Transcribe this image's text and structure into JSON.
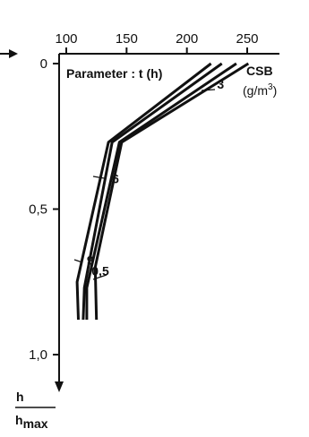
{
  "chart_data": {
    "type": "line",
    "title": "",
    "annotation": "Parameter : t (h)",
    "xlabel_line1": "CSB",
    "xlabel_line2": "(g/m",
    "xlabel_sup": "3",
    "xlabel_close": ")",
    "ylabel_top": "h",
    "ylabel_bottom_main": "h",
    "ylabel_bottom_sub": "max",
    "x_axis_position": "top",
    "y_axis_direction": "downward",
    "xlim": [
      90,
      265
    ],
    "ylim": [
      0,
      1.1
    ],
    "x_ticks": [
      {
        "value": 100,
        "label": "100"
      },
      {
        "value": 150,
        "label": "150"
      },
      {
        "value": 200,
        "label": "200"
      },
      {
        "value": 250,
        "label": "250"
      }
    ],
    "y_ticks": [
      {
        "value": 0,
        "label": "0"
      },
      {
        "value": 0.5,
        "label": "0,5"
      },
      {
        "value": 1.0,
        "label": "1,0"
      }
    ],
    "grid": false,
    "legend": "none",
    "series": [
      {
        "name": "3",
        "points": [
          [
            229,
            0
          ],
          [
            138,
            0.27
          ],
          [
            115,
            0.77
          ],
          [
            114,
            0.88
          ]
        ],
        "label_at": [
          225,
          0.07
        ]
      },
      {
        "name": "6",
        "points": [
          [
            241,
            0
          ],
          [
            144,
            0.27
          ],
          [
            117,
            0.77
          ],
          [
            117,
            0.88
          ]
        ],
        "label_at": [
          138,
          0.395
        ]
      },
      {
        "name": "9",
        "points": [
          [
            220,
            0
          ],
          [
            135,
            0.27
          ],
          [
            109,
            0.75
          ],
          [
            110,
            0.88
          ]
        ],
        "label_at": [
          117,
          0.675
        ]
      },
      {
        "name": "0,5",
        "points": [
          [
            251,
            0
          ],
          [
            146,
            0.27
          ],
          [
            124,
            0.7
          ],
          [
            125,
            0.88
          ]
        ],
        "label_at": [
          121,
          0.712
        ]
      }
    ],
    "line_color": "#111111"
  }
}
